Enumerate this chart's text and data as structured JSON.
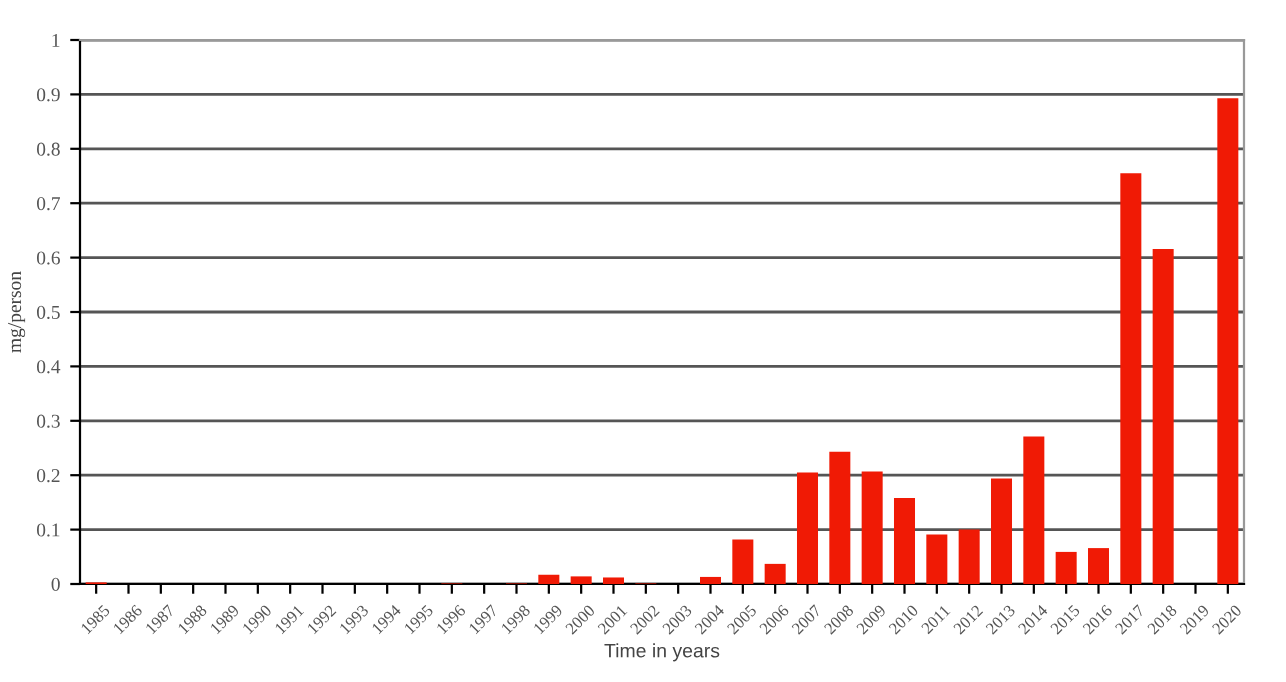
{
  "chart_data": {
    "type": "bar",
    "xlabel": "Time in years",
    "ylabel": "mg/person",
    "categories": [
      "1985",
      "1986",
      "1987",
      "1988",
      "1989",
      "1990",
      "1991",
      "1992",
      "1993",
      "1994",
      "1995",
      "1996",
      "1997",
      "1998",
      "1999",
      "2000",
      "2001",
      "2002",
      "2003",
      "2004",
      "2005",
      "2006",
      "2007",
      "2008",
      "2009",
      "2010",
      "2011",
      "2012",
      "2013",
      "2014",
      "2015",
      "2016",
      "2017",
      "2018",
      "2019",
      "2020"
    ],
    "values": [
      0.003,
      0,
      0,
      0,
      0,
      0,
      0,
      0,
      0,
      0,
      0,
      0.001,
      0,
      0.001,
      0.017,
      0.014,
      0.012,
      0.001,
      0,
      0.013,
      0.082,
      0.037,
      0.205,
      0.243,
      0.207,
      0.158,
      0.091,
      0.1,
      0.194,
      0.271,
      0.059,
      0.066,
      0.755,
      0.616,
      0,
      0.893
    ],
    "color": "#f01a05",
    "ylim": [
      0,
      1
    ],
    "yticks": [
      0,
      0.1,
      0.2,
      0.3,
      0.4,
      0.5,
      0.6,
      0.7,
      0.8,
      0.9,
      1
    ],
    "grid": "y"
  }
}
